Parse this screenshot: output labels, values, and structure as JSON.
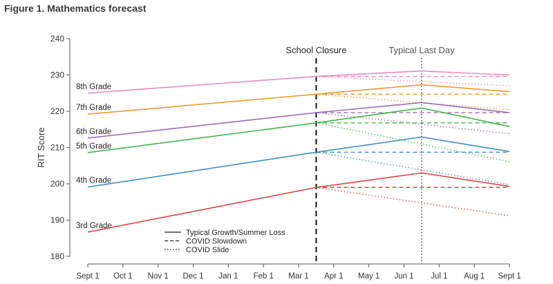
{
  "figure_title": "Figure 1. Mathematics forecast",
  "chart_data": {
    "type": "line",
    "title": "",
    "xlabel": "",
    "ylabel": "RIT Score",
    "ylim": [
      180,
      240
    ],
    "yticks": [
      180,
      190,
      200,
      210,
      220,
      230,
      240
    ],
    "x_tick_labels": [
      "Sept 1",
      "Oct 1",
      "Nov 1",
      "Dec 1",
      "Jan 1",
      "Feb 1",
      "Mar 1",
      "Apr 1",
      "May 1",
      "Jun 1",
      "Jul 1",
      "Aug 1",
      "Sept 1"
    ],
    "vlines": [
      {
        "label": "School Closure",
        "x": 6.5,
        "style": "dashed"
      },
      {
        "label": "Typical Last Day",
        "x": 9.5,
        "style": "dotted"
      }
    ],
    "series": [
      {
        "name": "8th Grade",
        "color": "#e78ac3",
        "typical": [
          [
            0,
            225
          ],
          [
            6.5,
            229.6
          ],
          [
            9.5,
            231.1
          ],
          [
            12,
            230.0
          ]
        ],
        "slowdown": [
          [
            6.5,
            229.6
          ],
          [
            12,
            229.6
          ]
        ],
        "slide": [
          [
            6.5,
            229.6
          ],
          [
            12,
            227.0
          ]
        ]
      },
      {
        "name": "7th Grade",
        "color": "#f0962a",
        "typical": [
          [
            0,
            219.2
          ],
          [
            6.5,
            224.7
          ],
          [
            9.5,
            227.3
          ],
          [
            12,
            225.4
          ]
        ],
        "slowdown": [
          [
            6.5,
            224.7
          ],
          [
            12,
            224.7
          ]
        ],
        "slide": [
          [
            6.5,
            224.7
          ],
          [
            12,
            220.4
          ]
        ]
      },
      {
        "name": "6th Grade",
        "color": "#9e6ab5",
        "typical": [
          [
            0,
            212.6
          ],
          [
            6.5,
            219.6
          ],
          [
            9.5,
            222.4
          ],
          [
            12,
            219.6
          ]
        ],
        "slowdown": [
          [
            6.5,
            219.6
          ],
          [
            12,
            219.6
          ]
        ],
        "slide": [
          [
            6.5,
            219.6
          ],
          [
            12,
            213.8
          ]
        ]
      },
      {
        "name": "5th Grade",
        "color": "#3fb54a",
        "typical": [
          [
            0,
            208.6
          ],
          [
            6.5,
            216.8
          ],
          [
            9.5,
            220.9
          ],
          [
            12,
            215.8
          ]
        ],
        "slowdown": [
          [
            6.5,
            216.8
          ],
          [
            12,
            216.8
          ]
        ],
        "slide": [
          [
            6.5,
            216.8
          ],
          [
            12,
            206.1
          ]
        ]
      },
      {
        "name": "4th Grade",
        "color": "#3e90c4",
        "typical": [
          [
            0,
            199.1
          ],
          [
            6.5,
            208.7
          ],
          [
            9.5,
            212.9
          ],
          [
            12,
            208.9
          ]
        ],
        "slowdown": [
          [
            6.5,
            208.7
          ],
          [
            12,
            208.7
          ]
        ],
        "slide": [
          [
            6.5,
            208.7
          ],
          [
            12,
            199.8
          ]
        ]
      },
      {
        "name": "3rd Grade",
        "color": "#e04141",
        "typical": [
          [
            0,
            186.7
          ],
          [
            6.5,
            199.0
          ],
          [
            9.5,
            203.0
          ],
          [
            12,
            199.3
          ]
        ],
        "slowdown": [
          [
            6.5,
            199.0
          ],
          [
            12,
            199.0
          ]
        ],
        "slide": [
          [
            6.5,
            199.0
          ],
          [
            12,
            191.2
          ]
        ]
      }
    ],
    "legend": {
      "position": "bottom-center",
      "items": [
        {
          "label": "Typical Growth/Summer Loss",
          "style": "solid"
        },
        {
          "label": "COVID Slowdown",
          "style": "dashed"
        },
        {
          "label": "COVID Slide",
          "style": "dotted"
        }
      ]
    }
  }
}
